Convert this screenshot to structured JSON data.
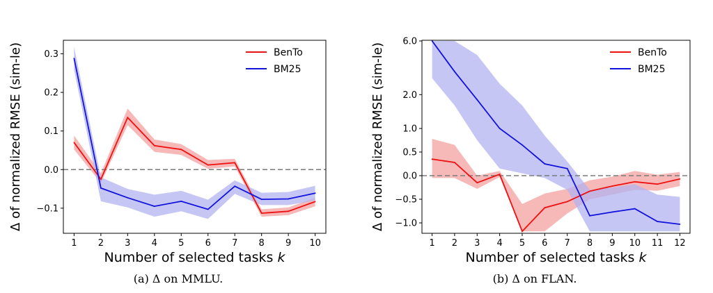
{
  "chart_data": [
    {
      "type": "line",
      "ylabel": "Δ of normalized RMSE (sim-le)",
      "xlabel": "Number of selected tasks k",
      "x": [
        1,
        2,
        3,
        4,
        5,
        6,
        7,
        8,
        9,
        10
      ],
      "xlim": [
        0.6,
        10.4
      ],
      "ylim": [
        -0.165,
        0.335
      ],
      "yticks": [
        -0.1,
        0.0,
        0.1,
        0.2,
        0.3
      ],
      "ytick_labels": [
        "−0.1",
        "0.0",
        "0.1",
        "0.2",
        "0.3"
      ],
      "reference_line": 0,
      "legend_position": "top-right",
      "series": [
        {
          "name": "BenTo",
          "color": "#ee1111",
          "band_color": "#f4a0a0",
          "values": [
            0.07,
            -0.025,
            0.135,
            0.062,
            0.052,
            0.012,
            0.018,
            -0.113,
            -0.108,
            -0.083
          ],
          "lower": [
            0.052,
            -0.035,
            0.115,
            0.046,
            0.038,
            0.002,
            0.008,
            -0.122,
            -0.118,
            -0.095
          ],
          "upper": [
            0.088,
            -0.01,
            0.158,
            0.078,
            0.066,
            0.025,
            0.028,
            -0.103,
            -0.098,
            -0.073
          ]
        },
        {
          "name": "BM25",
          "color": "#1111dd",
          "band_color": "#b3b3f0",
          "values": [
            0.288,
            -0.048,
            -0.073,
            -0.095,
            -0.082,
            -0.103,
            -0.043,
            -0.077,
            -0.076,
            -0.061
          ],
          "lower": [
            0.258,
            -0.082,
            -0.098,
            -0.122,
            -0.108,
            -0.128,
            -0.063,
            -0.092,
            -0.092,
            -0.08
          ],
          "upper": [
            0.318,
            -0.02,
            -0.05,
            -0.065,
            -0.055,
            -0.078,
            -0.028,
            -0.06,
            -0.058,
            -0.042
          ]
        }
      ]
    },
    {
      "type": "line",
      "ylabel": "Δ of normalized RMSE (sim-le)",
      "xlabel": "Number of selected tasks k",
      "x": [
        1,
        2,
        3,
        4,
        5,
        6,
        7,
        8,
        9,
        10,
        11,
        12
      ],
      "xlim": [
        0.55,
        12.45
      ],
      "yscale": "symlog (linear below 1.0, log above)",
      "yticks": [
        -1.0,
        -0.5,
        0.0,
        0.5,
        1.0,
        2.0,
        6.0
      ],
      "ytick_labels": [
        "−1.0",
        "−0.5",
        "0.0",
        "0.5",
        "1.0",
        "2.0",
        "6.0"
      ],
      "reference_line": 0,
      "legend_position": "top-right",
      "series": [
        {
          "name": "BenTo",
          "color": "#ee1111",
          "band_color": "#f4a0a0",
          "values": [
            0.35,
            0.28,
            -0.15,
            0.03,
            -1.18,
            -0.68,
            -0.55,
            -0.33,
            -0.22,
            -0.13,
            -0.18,
            -0.07
          ],
          "lower": [
            -0.05,
            -0.05,
            -0.28,
            -0.03,
            -1.18,
            -1.18,
            -0.8,
            -0.5,
            -0.4,
            -0.3,
            -0.32,
            -0.22
          ],
          "upper": [
            0.78,
            0.65,
            0.0,
            0.1,
            -0.6,
            -0.38,
            -0.28,
            -0.1,
            -0.02,
            0.1,
            0.02,
            0.08
          ]
        },
        {
          "name": "BM25",
          "color": "#1111dd",
          "band_color": "#b3b3f0",
          "values": [
            6.0,
            3.2,
            1.8,
            1.0,
            0.65,
            0.25,
            0.15,
            -0.85,
            -0.77,
            -0.7,
            -0.97,
            -1.03
          ],
          "lower": [
            2.8,
            1.6,
            0.75,
            0.15,
            0.05,
            -0.05,
            -0.3,
            -1.18,
            -1.18,
            -1.18,
            -1.18,
            -1.18
          ],
          "upper": [
            6.0,
            6.0,
            4.5,
            2.5,
            1.6,
            0.85,
            0.3,
            -0.3,
            -0.25,
            -0.18,
            -0.4,
            -0.45
          ]
        }
      ]
    }
  ],
  "captions": {
    "a": "(a) Δ on MMLU.",
    "b": "(b) Δ on FLAN."
  }
}
